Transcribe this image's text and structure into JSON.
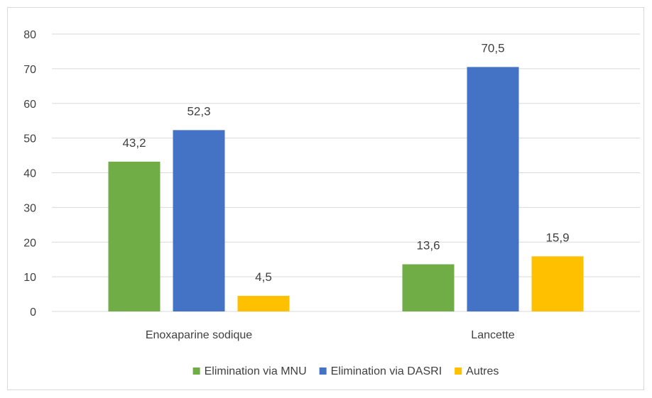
{
  "chart_data": {
    "type": "bar",
    "title": "",
    "xlabel": "",
    "ylabel": "",
    "categories": [
      "Enoxaparine sodique",
      "Lancette"
    ],
    "series": [
      {
        "name": "Elimination via MNU",
        "color": "#70ad47",
        "values": [
          43.2,
          13.6
        ],
        "labels": [
          "43,2",
          "13,6"
        ]
      },
      {
        "name": "Elimination via DASRI",
        "color": "#4472c4",
        "values": [
          52.3,
          70.5
        ],
        "labels": [
          "52,3",
          "70,5"
        ]
      },
      {
        "name": "Autres",
        "color": "#ffc000",
        "values": [
          4.5,
          15.9
        ],
        "labels": [
          "4,5",
          "15,9"
        ]
      }
    ],
    "ylim": [
      0,
      80
    ],
    "yticks": [
      0,
      10,
      20,
      30,
      40,
      50,
      60,
      70,
      80
    ],
    "grid": true,
    "legend_position": "bottom"
  }
}
